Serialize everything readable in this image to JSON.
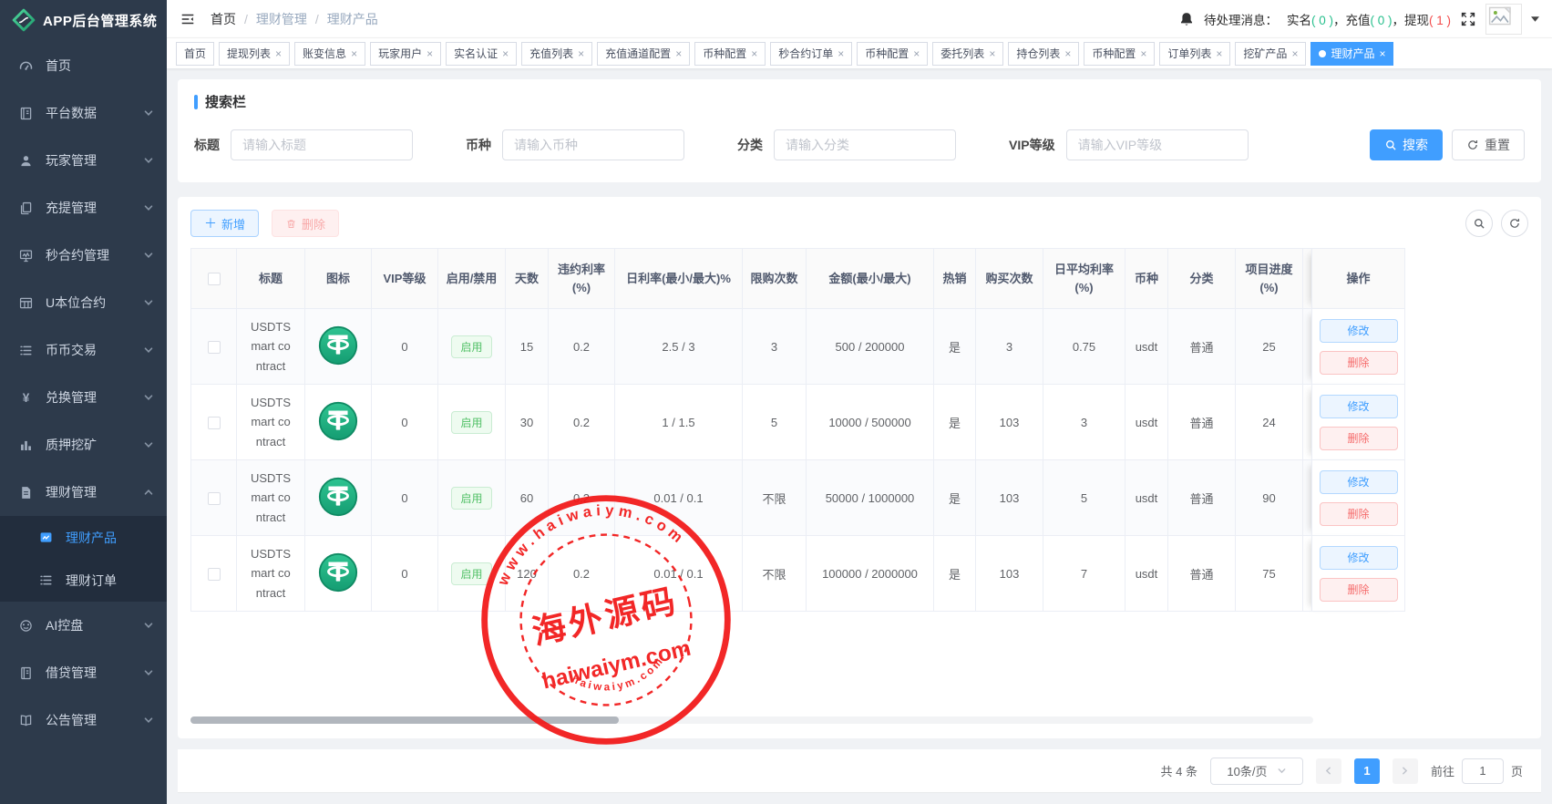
{
  "app": {
    "title": "APP后台管理系统"
  },
  "sidebar": {
    "items": [
      {
        "label": "首页",
        "icon": "dashboard-icon",
        "expandable": false
      },
      {
        "label": "平台数据",
        "icon": "platform-data-icon",
        "expandable": true
      },
      {
        "label": "玩家管理",
        "icon": "user-icon",
        "expandable": true
      },
      {
        "label": "充提管理",
        "icon": "copy-icon",
        "expandable": true
      },
      {
        "label": "秒合约管理",
        "icon": "monitor-icon",
        "expandable": true
      },
      {
        "label": "U本位合约",
        "icon": "grid-icon",
        "expandable": true
      },
      {
        "label": "币币交易",
        "icon": "list-icon",
        "expandable": true
      },
      {
        "label": "兑换管理",
        "icon": "yen-icon",
        "expandable": true
      },
      {
        "label": "质押挖矿",
        "icon": "bar-chart-icon",
        "expandable": true
      },
      {
        "label": "理财管理",
        "icon": "document-icon",
        "expandable": true,
        "expanded": true,
        "children": [
          {
            "label": "理财产品",
            "icon": "chart-pic-icon",
            "active": true
          },
          {
            "label": "理财订单",
            "icon": "order-list-icon",
            "active": false
          }
        ]
      },
      {
        "label": "AI控盘",
        "icon": "robot-icon",
        "expandable": true
      },
      {
        "label": "借贷管理",
        "icon": "notebook-icon",
        "expandable": true
      },
      {
        "label": "公告管理",
        "icon": "open-book-icon",
        "expandable": true
      }
    ]
  },
  "header": {
    "breadcrumb": [
      "首页",
      "理财管理",
      "理财产品"
    ],
    "pending_label": "待处理消息：",
    "pending": [
      {
        "label": "实名",
        "value": "0",
        "color": "#26bf8c"
      },
      {
        "label": "充值",
        "value": "0",
        "color": "#26bf8c"
      },
      {
        "label": "提现",
        "value": "1",
        "color": "#f34b4b"
      }
    ]
  },
  "tabs": [
    {
      "label": "首页",
      "closable": false,
      "active": false
    },
    {
      "label": "提现列表",
      "closable": true,
      "active": false
    },
    {
      "label": "账变信息",
      "closable": true,
      "active": false
    },
    {
      "label": "玩家用户",
      "closable": true,
      "active": false
    },
    {
      "label": "实名认证",
      "closable": true,
      "active": false
    },
    {
      "label": "充值列表",
      "closable": true,
      "active": false
    },
    {
      "label": "充值通道配置",
      "closable": true,
      "active": false
    },
    {
      "label": "币种配置",
      "closable": true,
      "active": false
    },
    {
      "label": "秒合约订单",
      "closable": true,
      "active": false
    },
    {
      "label": "币种配置",
      "closable": true,
      "active": false
    },
    {
      "label": "委托列表",
      "closable": true,
      "active": false
    },
    {
      "label": "持仓列表",
      "closable": true,
      "active": false
    },
    {
      "label": "币种配置",
      "closable": true,
      "active": false
    },
    {
      "label": "订单列表",
      "closable": true,
      "active": false
    },
    {
      "label": "挖矿产品",
      "closable": true,
      "active": false
    },
    {
      "label": "理财产品",
      "closable": true,
      "active": true
    }
  ],
  "search": {
    "title": "搜索栏",
    "fields": [
      {
        "label": "标题",
        "placeholder": "请输入标题"
      },
      {
        "label": "币种",
        "placeholder": "请输入币种"
      },
      {
        "label": "分类",
        "placeholder": "请输入分类"
      },
      {
        "label": "VIP等级",
        "placeholder": "请输入VIP等级"
      }
    ],
    "search_label": "搜索",
    "reset_label": "重置"
  },
  "toolbar": {
    "add_label": "新增",
    "delete_label": "删除"
  },
  "table": {
    "headers": [
      "标题",
      "图标",
      "VIP等级",
      "启用/禁用",
      "天数",
      "违约利率 (%)",
      "日利率(最小/最大)%",
      "限购次数",
      "金额(最小/最大)",
      "热销",
      "购买次数",
      "日平均利率 (%)",
      "币种",
      "分类",
      "项目进度 (%)",
      "操作"
    ],
    "actions": {
      "edit": "修改",
      "delete": "删除"
    },
    "rows": [
      {
        "title": "USDTSmart contract",
        "icon": "tether-coin-icon",
        "vip": "0",
        "status": "启用",
        "days": "15",
        "penalty_rate": "0.2",
        "daily_rate": "2.5 / 3",
        "limit": "3",
        "amount": "500 / 200000",
        "hot": "是",
        "buys": "3",
        "avg_rate": "0.75",
        "coin": "usdt",
        "category": "普通",
        "progress": "25"
      },
      {
        "title": "USDTSmart contract",
        "icon": "tether-coin-icon",
        "vip": "0",
        "status": "启用",
        "days": "30",
        "penalty_rate": "0.2",
        "daily_rate": "1 / 1.5",
        "limit": "5",
        "amount": "10000 / 500000",
        "hot": "是",
        "buys": "103",
        "avg_rate": "3",
        "coin": "usdt",
        "category": "普通",
        "progress": "24"
      },
      {
        "title": "USDTSmart contract",
        "icon": "tether-coin-icon",
        "vip": "0",
        "status": "启用",
        "days": "60",
        "penalty_rate": "0.2",
        "daily_rate": "0.01 / 0.1",
        "limit": "不限",
        "amount": "50000 / 1000000",
        "hot": "是",
        "buys": "103",
        "avg_rate": "5",
        "coin": "usdt",
        "category": "普通",
        "progress": "90"
      },
      {
        "title": "USDTSmart contract",
        "icon": "tether-coin-icon",
        "vip": "0",
        "status": "启用",
        "days": "120",
        "penalty_rate": "0.2",
        "daily_rate": "0.01 / 0.1",
        "limit": "不限",
        "amount": "100000 / 2000000",
        "hot": "是",
        "buys": "103",
        "avg_rate": "7",
        "coin": "usdt",
        "category": "普通",
        "progress": "75"
      }
    ]
  },
  "pagination": {
    "total": "共 4 条",
    "page_size": "10条/页",
    "current": "1",
    "goto_label": "前往",
    "goto_value": "1",
    "page_label": "页"
  },
  "watermark": {
    "top_text": "www.haiwaiym.com",
    "center_text": "海外源码",
    "sub_text": "haiwaiym.com",
    "bottom_text": "haiwaiym.com",
    "color": "#f21717"
  },
  "colors": {
    "primary": "#409eff",
    "success": "#53c168",
    "danger": "#f56c6c",
    "sidebar_bg": "#2d3a4b",
    "pending_ok": "#26bf8c",
    "pending_alert": "#f34b4b",
    "stamp_red": "#f21717"
  }
}
